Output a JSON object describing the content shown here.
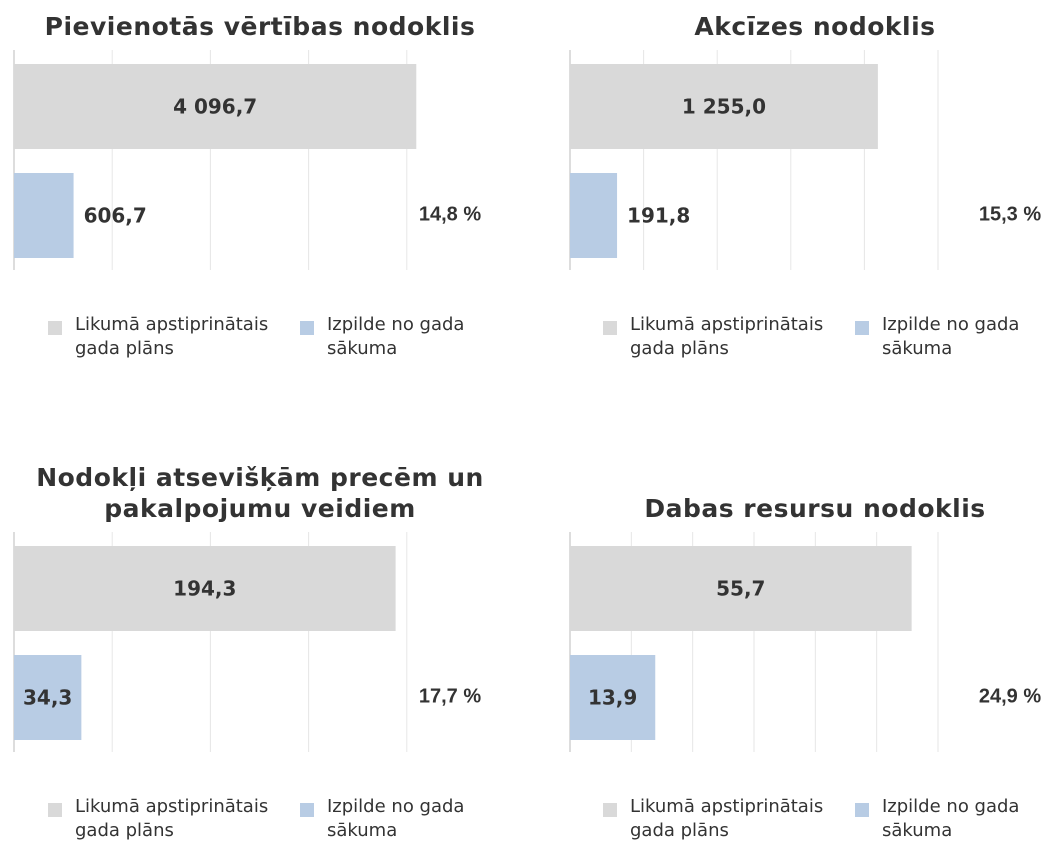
{
  "chart_data": [
    {
      "type": "bar",
      "title": "Pievienotās vērtības nodoklis",
      "series": [
        {
          "name": "Likumā apstiprinātais gada plāns",
          "color": "#d9d9d9",
          "values": [
            4096.7
          ],
          "value_labels": [
            "4 096,7"
          ]
        },
        {
          "name": "Izpilde no gada sākuma",
          "color": "#b8cce4",
          "values": [
            606.7
          ],
          "value_labels": [
            "606,7"
          ]
        }
      ],
      "annotation": "14,8 %",
      "xlim": [
        0,
        5000
      ],
      "xticks": [
        0,
        1000,
        2000,
        3000,
        4000,
        5000
      ],
      "grid": true
    },
    {
      "type": "bar",
      "title": "Akcīzes nodoklis",
      "series": [
        {
          "name": "Likumā apstiprinātais gada plāns",
          "color": "#d9d9d9",
          "values": [
            1255.0
          ],
          "value_labels": [
            "1 255,0"
          ]
        },
        {
          "name": "Izpilde no gada sākuma",
          "color": "#b8cce4",
          "values": [
            191.8
          ],
          "value_labels": [
            "191,8"
          ]
        }
      ],
      "annotation": "15,3 %",
      "xlim": [
        0,
        1500
      ],
      "xticks": [
        0,
        300,
        600,
        900,
        1200,
        1500
      ],
      "grid": true
    },
    {
      "type": "bar",
      "title": "Nodokļi atsevišķām precēm un pakalpojumu veidiem",
      "series": [
        {
          "name": "Likumā apstiprinātais gada plāns",
          "color": "#d9d9d9",
          "values": [
            194.3
          ],
          "value_labels": [
            "194,3"
          ]
        },
        {
          "name": "Izpilde no gada sākuma",
          "color": "#b8cce4",
          "values": [
            34.3
          ],
          "value_labels": [
            "34,3"
          ]
        }
      ],
      "annotation": "17,7 %",
      "xlim": [
        0,
        250
      ],
      "xticks": [
        0,
        50,
        100,
        150,
        200,
        250
      ],
      "grid": true
    },
    {
      "type": "bar",
      "title": "Dabas resursu nodoklis",
      "series": [
        {
          "name": "Likumā apstiprinātais gada plāns",
          "color": "#d9d9d9",
          "values": [
            55.7
          ],
          "value_labels": [
            "55,7"
          ]
        },
        {
          "name": "Izpilde no gada sākuma",
          "color": "#b8cce4",
          "values": [
            13.9
          ],
          "value_labels": [
            "13,9"
          ]
        }
      ],
      "annotation": "24,9 %",
      "xlim": [
        0,
        60
      ],
      "xticks": [
        0,
        10,
        20,
        30,
        40,
        50,
        60
      ],
      "grid": true
    }
  ]
}
